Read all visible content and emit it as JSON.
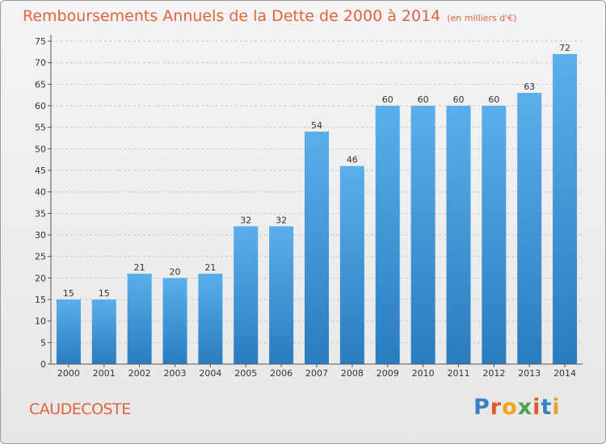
{
  "chart_data": {
    "type": "bar",
    "title": "Remboursements Annuels de la Dette de 2000 à 2014",
    "subtitle": "(en milliers d'€)",
    "categories": [
      "2000",
      "2001",
      "2002",
      "2003",
      "2004",
      "2005",
      "2006",
      "2007",
      "2008",
      "2009",
      "2010",
      "2011",
      "2012",
      "2013",
      "2014"
    ],
    "values": [
      15,
      15,
      21,
      20,
      21,
      32,
      32,
      54,
      46,
      60,
      60,
      60,
      60,
      63,
      72
    ],
    "ylim": [
      0,
      75
    ],
    "yticks": [
      0,
      5,
      10,
      15,
      20,
      25,
      30,
      35,
      40,
      45,
      50,
      55,
      60,
      65,
      70,
      75
    ],
    "xlabel": "",
    "ylabel": "",
    "grid": true,
    "bar_color": "#4a9be0"
  },
  "footer": {
    "commune": "CAUDECOSTE",
    "logo_letters": [
      {
        "ch": "P",
        "color": "#3b7fc4"
      },
      {
        "ch": "r",
        "color": "#e05a2b"
      },
      {
        "ch": "o",
        "color": "#f0a51c"
      },
      {
        "ch": "x",
        "color": "#4aa34a"
      },
      {
        "ch": "i",
        "color": "#e05a2b"
      },
      {
        "ch": "t",
        "color": "#3b7fc4"
      },
      {
        "ch": "i",
        "color": "#e0a51c"
      }
    ]
  }
}
